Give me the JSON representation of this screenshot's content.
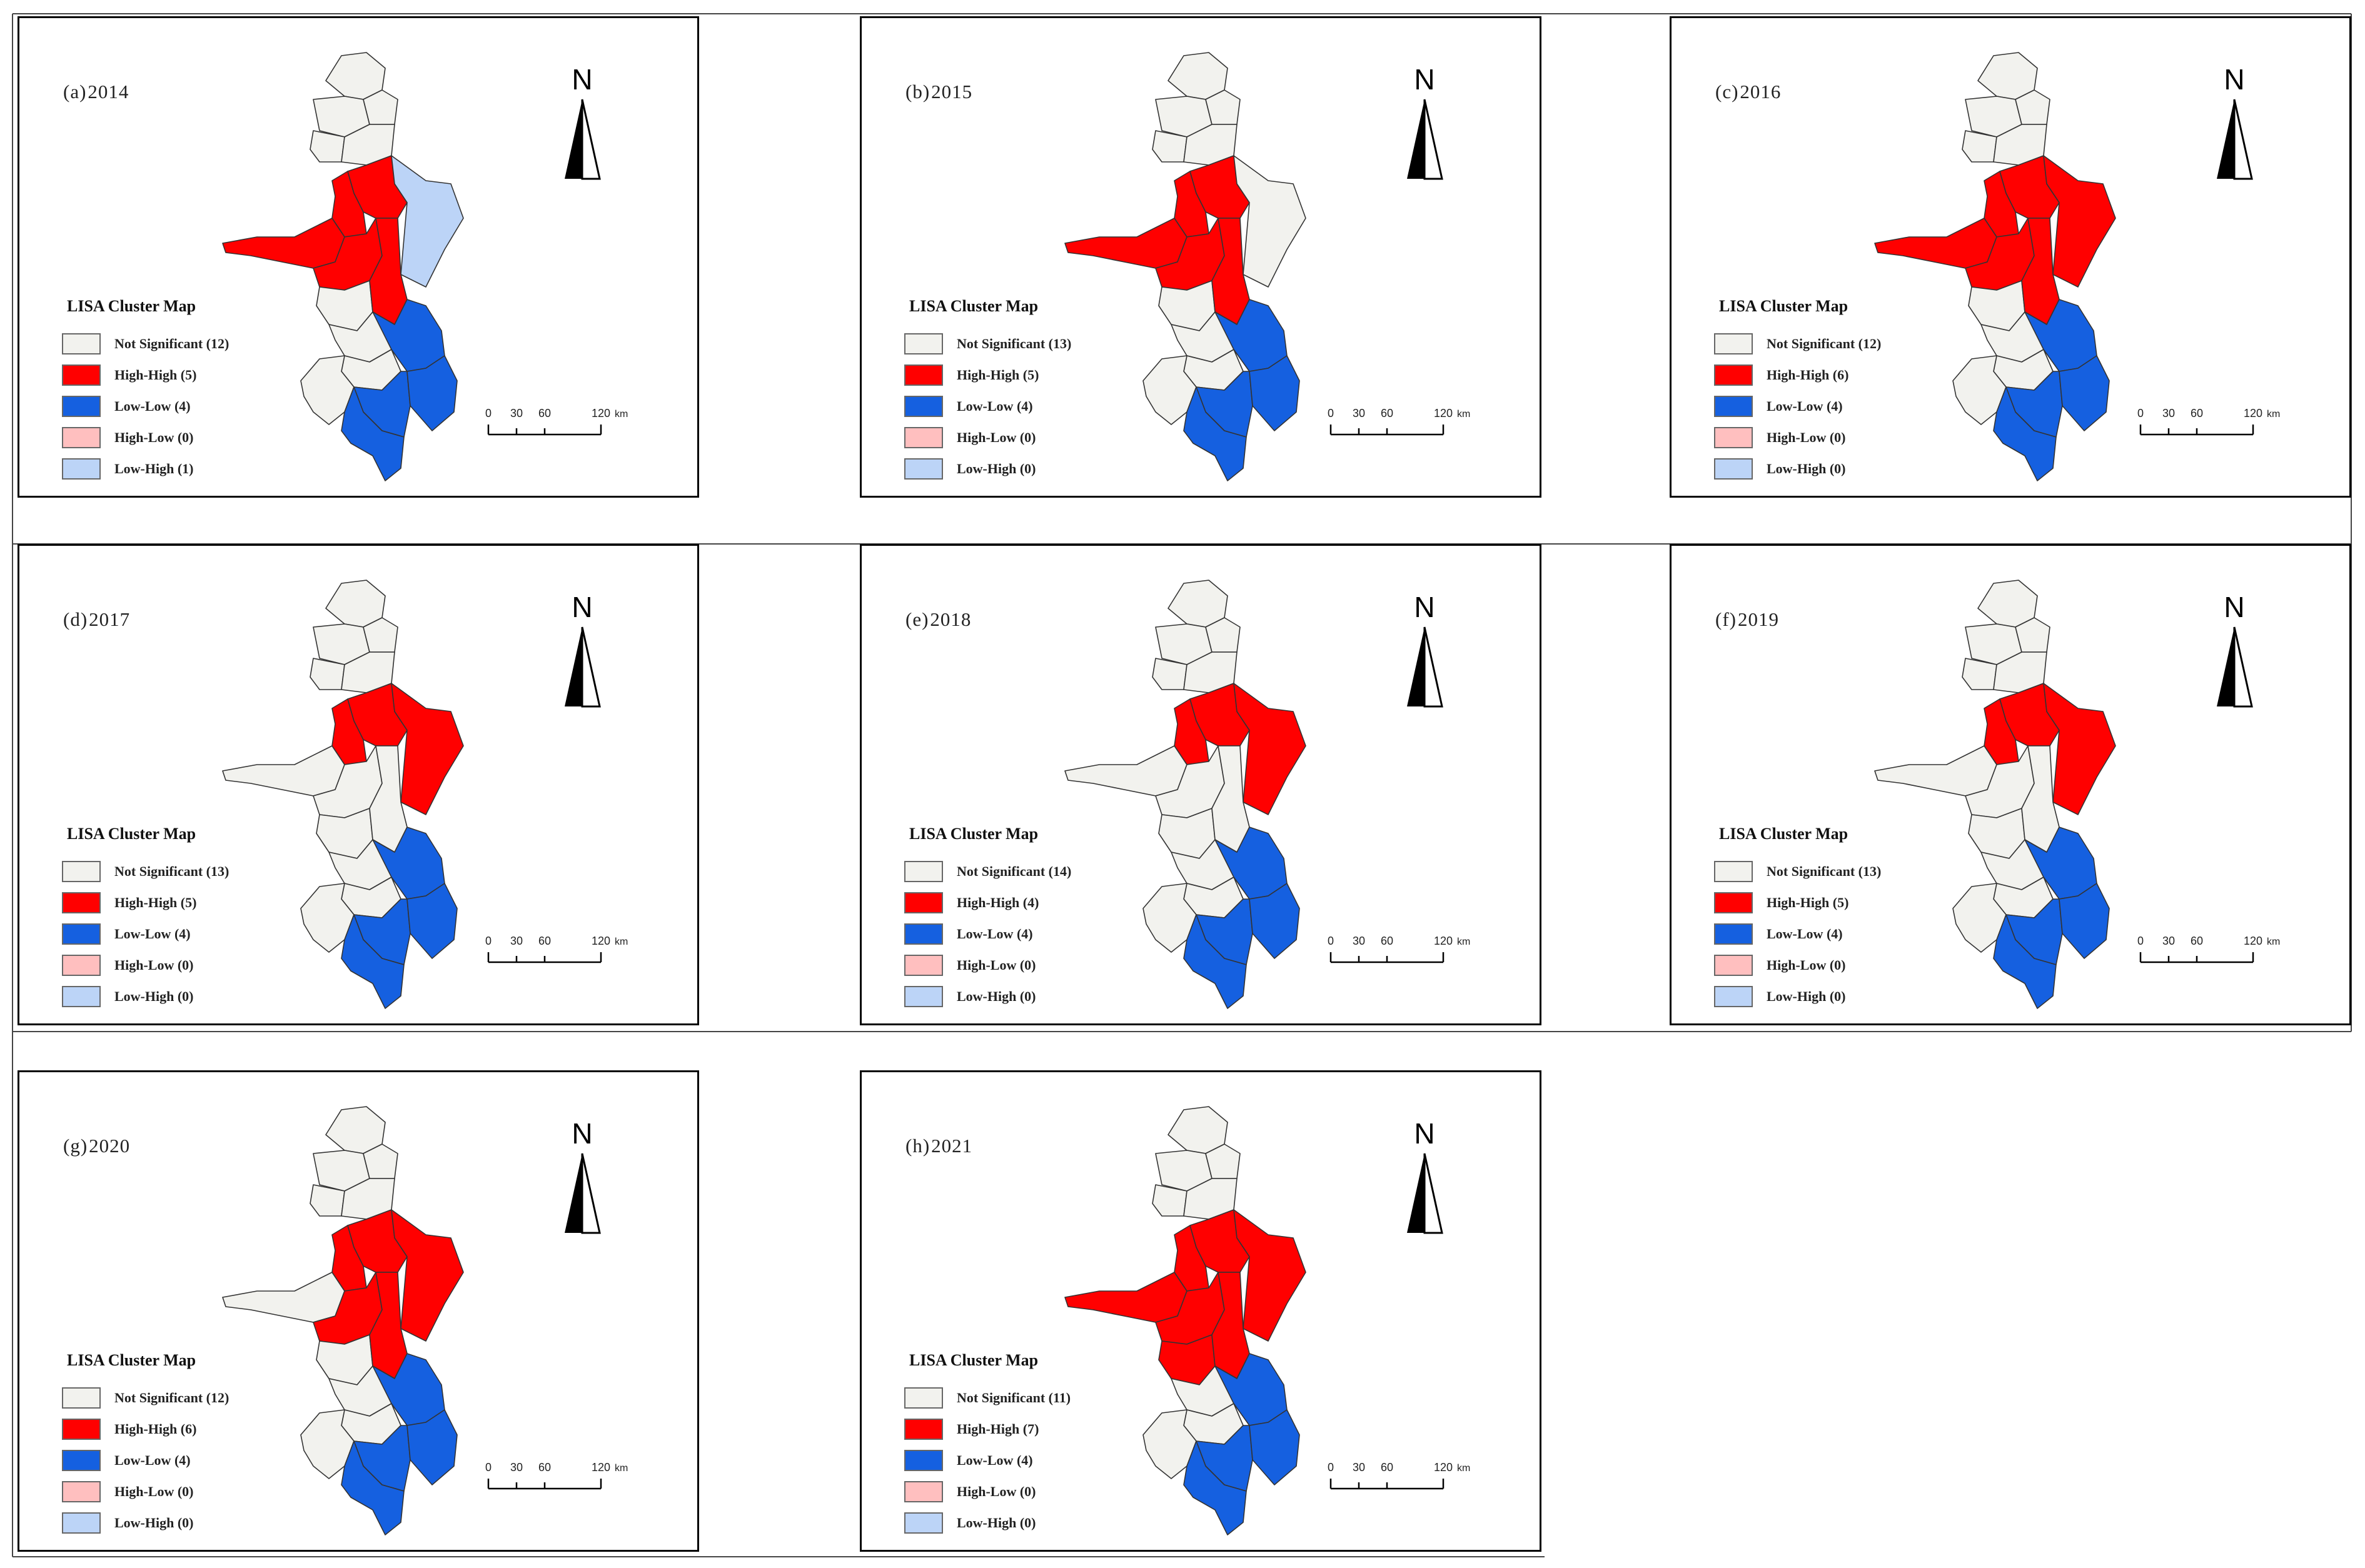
{
  "figure": {
    "legend_title": "LISA Cluster Map",
    "north_label": "N",
    "scale_bar": {
      "ticks": [
        "0",
        "30",
        "60",
        "120"
      ],
      "unit": "km"
    },
    "colors": {
      "not_significant": "#f2f2ee",
      "high_high": "#ff0000",
      "low_low": "#1560e0",
      "high_low": "#ffbfbf",
      "low_high": "#bcd4f7",
      "boundary": "#333333"
    },
    "panels": [
      {
        "label": "(a)",
        "year": "2014",
        "legend": [
          {
            "name": "Not Significant (12)",
            "cls": "ns"
          },
          {
            "name": "High-High (5)",
            "cls": "hh"
          },
          {
            "name": "Low-Low (4)",
            "cls": "ll"
          },
          {
            "name": "High-Low (0)",
            "cls": "hl"
          },
          {
            "name": "Low-High (1)",
            "cls": "lh"
          }
        ]
      },
      {
        "label": "(b)",
        "year": "2015",
        "legend": [
          {
            "name": "Not Significant (13)",
            "cls": "ns"
          },
          {
            "name": "High-High (5)",
            "cls": "hh"
          },
          {
            "name": "Low-Low (4)",
            "cls": "ll"
          },
          {
            "name": "High-Low (0)",
            "cls": "hl"
          },
          {
            "name": "Low-High (0)",
            "cls": "lh"
          }
        ]
      },
      {
        "label": "(c)",
        "year": "2016",
        "legend": [
          {
            "name": "Not Significant (12)",
            "cls": "ns"
          },
          {
            "name": "High-High (6)",
            "cls": "hh"
          },
          {
            "name": "Low-Low (4)",
            "cls": "ll"
          },
          {
            "name": "High-Low (0)",
            "cls": "hl"
          },
          {
            "name": "Low-High (0)",
            "cls": "lh"
          }
        ]
      },
      {
        "label": "(d)",
        "year": "2017",
        "legend": [
          {
            "name": "Not Significant (13)",
            "cls": "ns"
          },
          {
            "name": "High-High (5)",
            "cls": "hh"
          },
          {
            "name": "Low-Low (4)",
            "cls": "ll"
          },
          {
            "name": "High-Low (0)",
            "cls": "hl"
          },
          {
            "name": "Low-High (0)",
            "cls": "lh"
          }
        ]
      },
      {
        "label": "(e)",
        "year": "2018",
        "legend": [
          {
            "name": "Not Significant (14)",
            "cls": "ns"
          },
          {
            "name": "High-High (4)",
            "cls": "hh"
          },
          {
            "name": "Low-Low (4)",
            "cls": "ll"
          },
          {
            "name": "High-Low (0)",
            "cls": "hl"
          },
          {
            "name": "Low-High (0)",
            "cls": "lh"
          }
        ]
      },
      {
        "label": "(f)",
        "year": "2019",
        "legend": [
          {
            "name": "Not Significant (13)",
            "cls": "ns"
          },
          {
            "name": "High-High (5)",
            "cls": "hh"
          },
          {
            "name": "Low-Low (4)",
            "cls": "ll"
          },
          {
            "name": "High-Low (0)",
            "cls": "hl"
          },
          {
            "name": "Low-High (0)",
            "cls": "lh"
          }
        ]
      },
      {
        "label": "(g)",
        "year": "2020",
        "legend": [
          {
            "name": "Not Significant (12)",
            "cls": "ns"
          },
          {
            "name": "High-High (6)",
            "cls": "hh"
          },
          {
            "name": "Low-Low (4)",
            "cls": "ll"
          },
          {
            "name": "High-Low (0)",
            "cls": "hl"
          },
          {
            "name": "Low-High (0)",
            "cls": "lh"
          }
        ]
      },
      {
        "label": "(h)",
        "year": "2021",
        "legend": [
          {
            "name": "Not Significant (11)",
            "cls": "ns"
          },
          {
            "name": "High-High (7)",
            "cls": "hh"
          },
          {
            "name": "Low-Low (4)",
            "cls": "ll"
          },
          {
            "name": "High-Low (0)",
            "cls": "hl"
          },
          {
            "name": "Low-High (0)",
            "cls": "lh"
          }
        ]
      }
    ]
  }
}
